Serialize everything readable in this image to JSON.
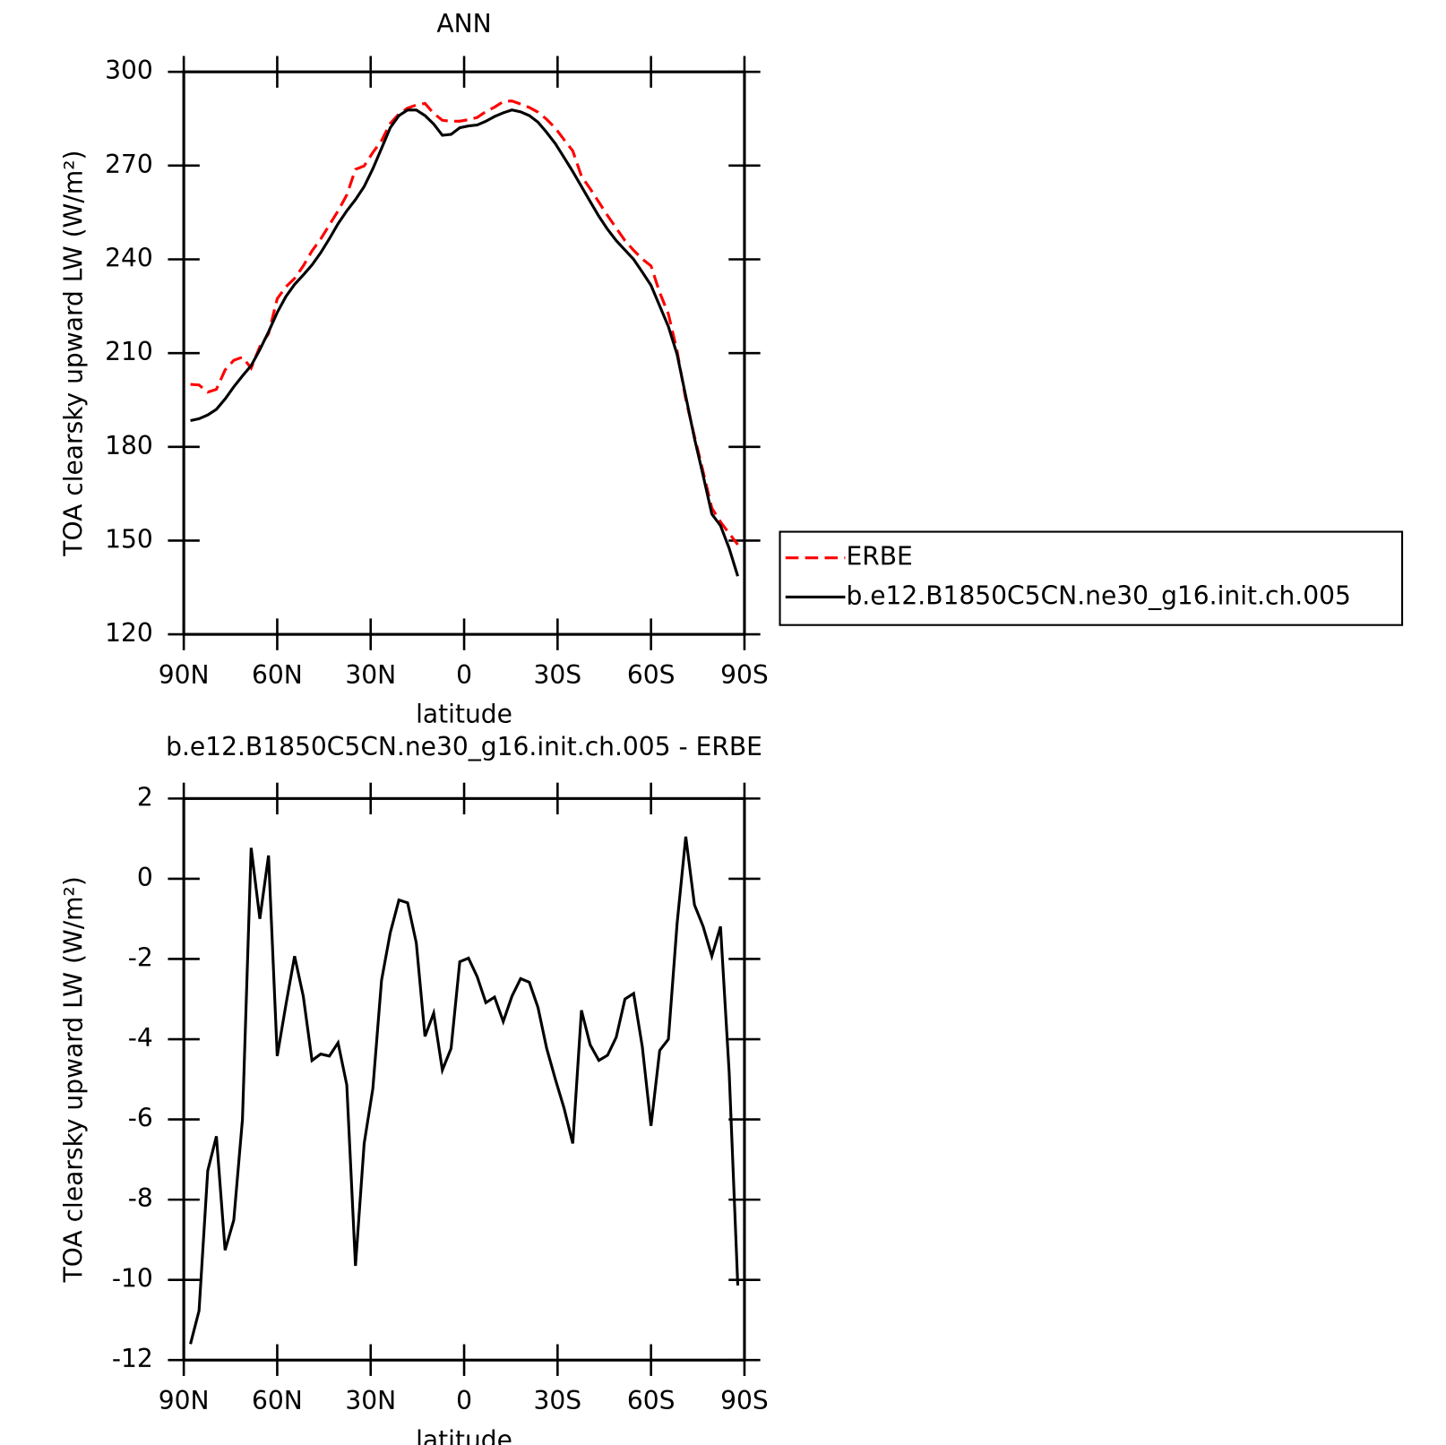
{
  "chart_data": [
    {
      "type": "line",
      "title": "ANN",
      "xlabel": "latitude",
      "ylabel": "TOA clearsky upward LW (W/m²)",
      "x": [
        87.86,
        85.1,
        82.31,
        79.53,
        76.74,
        73.95,
        71.16,
        68.37,
        65.58,
        62.79,
        60.0,
        57.21,
        54.42,
        51.63,
        48.84,
        46.05,
        43.26,
        40.47,
        37.67,
        34.88,
        32.09,
        29.3,
        26.51,
        23.72,
        20.93,
        18.14,
        15.35,
        12.56,
        9.77,
        6.98,
        4.19,
        1.4,
        -1.4,
        -4.19,
        -6.98,
        -9.77,
        -12.56,
        -15.35,
        -18.14,
        -20.93,
        -23.72,
        -26.51,
        -29.3,
        -32.09,
        -34.88,
        -37.67,
        -40.47,
        -43.26,
        -46.05,
        -48.84,
        -51.63,
        -54.42,
        -57.21,
        -60.0,
        -62.79,
        -65.58,
        -68.37,
        -71.16,
        -73.95,
        -76.74,
        -79.53,
        -82.31,
        -85.1,
        -87.86
      ],
      "series": [
        {
          "name": "ERBE",
          "color": "#ff0000",
          "dashed": true,
          "values": [
            200.0,
            199.8,
            197.5,
            198.4,
            204.6,
            207.7,
            208.7,
            205.2,
            212.1,
            216.2,
            227.4,
            231.2,
            233.9,
            237.9,
            242.7,
            246.5,
            251.0,
            255.5,
            260.6,
            268.8,
            269.9,
            274.2,
            278.0,
            283.5,
            286.5,
            288.4,
            289.4,
            289.9,
            286.7,
            284.5,
            284.2,
            284.2,
            284.7,
            285.4,
            287.3,
            288.7,
            290.5,
            290.7,
            289.7,
            288.6,
            287.1,
            284.8,
            282.0,
            278.3,
            274.7,
            266.6,
            262.6,
            258.3,
            254.0,
            250.0,
            246.0,
            242.9,
            240.1,
            237.9,
            229.4,
            222.5,
            210.7,
            195.2,
            183.4,
            172.0,
            160.4,
            156.0,
            152.3,
            148.7
          ]
        },
        {
          "name": "b.e12.B1850C5CN.ne30_g16.init.ch.005",
          "color": "#000000",
          "dashed": false,
          "values": [
            188.4,
            189.0,
            190.2,
            192.0,
            195.3,
            199.2,
            202.7,
            206.0,
            211.1,
            216.8,
            223.0,
            228.1,
            232.0,
            235.0,
            238.2,
            242.1,
            246.6,
            251.4,
            255.5,
            259.1,
            263.3,
            269.0,
            275.5,
            282.1,
            286.0,
            287.8,
            287.8,
            286.0,
            283.3,
            279.7,
            280.0,
            282.1,
            282.7,
            283.0,
            284.2,
            285.7,
            286.9,
            287.8,
            287.2,
            286.0,
            283.9,
            280.6,
            277.0,
            272.6,
            268.1,
            263.3,
            258.5,
            253.8,
            249.6,
            246.0,
            243.0,
            240.0,
            235.9,
            231.7,
            225.1,
            218.5,
            209.6,
            196.2,
            182.7,
            170.8,
            158.5,
            154.8,
            147.5,
            138.6
          ]
        }
      ],
      "xlim": [
        90,
        -90
      ],
      "xticks": [
        {
          "value": 90,
          "label": "90N"
        },
        {
          "value": 60,
          "label": "60N"
        },
        {
          "value": 30,
          "label": "30N"
        },
        0,
        {
          "value": -30,
          "label": "30S"
        },
        {
          "value": -60,
          "label": "60S"
        },
        {
          "value": -90,
          "label": "90S"
        }
      ],
      "ylim": [
        120,
        300
      ],
      "yticks": [
        120,
        150,
        180,
        210,
        240,
        270,
        300
      ],
      "legend": "right"
    },
    {
      "type": "line",
      "title": "b.e12.B1850C5CN.ne30_g16.init.ch.005 - ERBE",
      "xlabel": "latitude",
      "ylabel": "TOA clearsky upward LW (W/m²)",
      "x": [
        87.86,
        85.1,
        82.31,
        79.53,
        76.74,
        73.95,
        71.16,
        68.37,
        65.58,
        62.79,
        60.0,
        57.21,
        54.42,
        51.63,
        48.84,
        46.05,
        43.26,
        40.47,
        37.67,
        34.88,
        32.09,
        29.3,
        26.51,
        23.72,
        20.93,
        18.14,
        15.35,
        12.56,
        9.77,
        6.98,
        4.19,
        1.4,
        -1.4,
        -4.19,
        -6.98,
        -9.77,
        -12.56,
        -15.35,
        -18.14,
        -20.93,
        -23.72,
        -26.51,
        -29.3,
        -32.09,
        -34.88,
        -37.67,
        -40.47,
        -43.26,
        -46.05,
        -48.84,
        -51.63,
        -54.42,
        -57.21,
        -60.0,
        -62.79,
        -65.58,
        -68.37,
        -71.16,
        -73.95,
        -76.74,
        -79.53,
        -82.31,
        -85.1,
        -87.86
      ],
      "series": [
        {
          "color": "#000000",
          "dashed": false,
          "values": [
            -11.6,
            -10.77,
            -7.28,
            -6.42,
            -9.26,
            -8.51,
            -6.0,
            0.77,
            -1.0,
            0.58,
            -4.42,
            -3.14,
            -1.93,
            -2.93,
            -4.53,
            -4.37,
            -4.42,
            -4.09,
            -5.14,
            -9.65,
            -6.6,
            -5.23,
            -2.53,
            -1.35,
            -0.53,
            -0.6,
            -1.6,
            -3.93,
            -3.35,
            -4.77,
            -4.23,
            -2.07,
            -1.98,
            -2.44,
            -3.09,
            -2.95,
            -3.56,
            -2.93,
            -2.49,
            -2.58,
            -3.21,
            -4.23,
            -5.0,
            -5.72,
            -6.6,
            -3.28,
            -4.14,
            -4.53,
            -4.4,
            -3.95,
            -3.0,
            -2.86,
            -4.19,
            -6.16,
            -4.28,
            -4.0,
            -1.12,
            1.05,
            -0.65,
            -1.19,
            -1.93,
            -1.19,
            -4.84,
            -10.14
          ]
        }
      ],
      "xlim": [
        90,
        -90
      ],
      "xticks": [
        {
          "value": 90,
          "label": "90N"
        },
        {
          "value": 60,
          "label": "60N"
        },
        {
          "value": 30,
          "label": "30N"
        },
        0,
        {
          "value": -30,
          "label": "30S"
        },
        {
          "value": -60,
          "label": "60S"
        },
        {
          "value": -90,
          "label": "90S"
        }
      ],
      "ylim": [
        -12,
        2
      ],
      "yticks": [
        -12,
        -10,
        -8,
        -6,
        -4,
        -2,
        0,
        2
      ]
    }
  ]
}
